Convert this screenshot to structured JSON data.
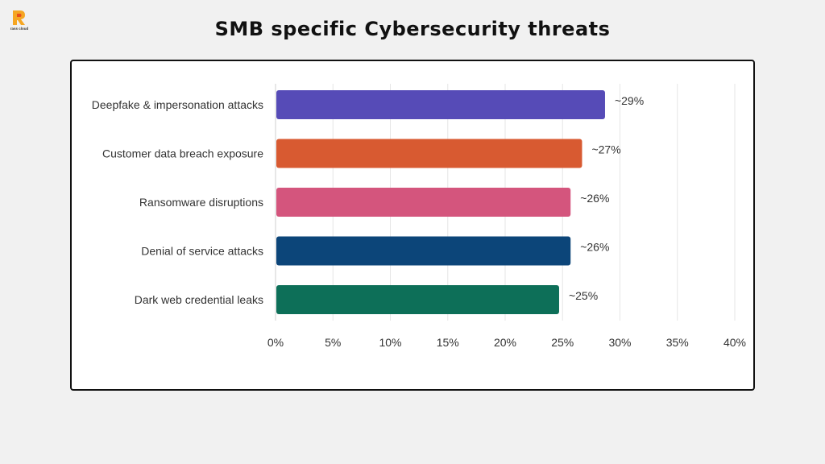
{
  "brand": {
    "logo_text": "rass cloud",
    "colors": {
      "logo_orange": "#f5a623",
      "logo_red": "#e94e1b"
    }
  },
  "page": {
    "title": "SMB specific Cybersecurity threats"
  },
  "chart_data": {
    "type": "bar",
    "orientation": "horizontal",
    "categories": [
      "Deepfake & impersonation attacks",
      "Customer data breach exposure",
      "Ransomware disruptions",
      "Denial of service attacks",
      "Dark web credential leaks"
    ],
    "values": [
      28.7,
      26.7,
      25.7,
      25.7,
      24.7
    ],
    "data_labels": [
      "~29%",
      "~27%",
      "~26%",
      "~26%",
      "~25%"
    ],
    "colors": [
      "#564bb7",
      "#d85a31",
      "#d4557d",
      "#0c4579",
      "#0d6f58"
    ],
    "x_ticks": [
      0,
      5,
      10,
      15,
      20,
      25,
      30,
      35,
      40
    ],
    "x_tick_labels": [
      "0%",
      "5%",
      "10%",
      "15%",
      "20%",
      "25%",
      "30%",
      "35%",
      "40%"
    ],
    "xlim": [
      0,
      40
    ],
    "grid": "vertical",
    "legend": "none"
  }
}
